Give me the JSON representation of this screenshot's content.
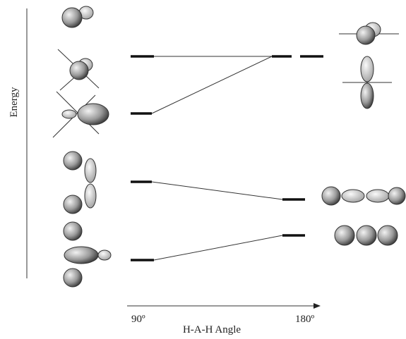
{
  "axis": {
    "y_label": "Energy",
    "x_label": "H-A-H Angle",
    "x_start": "90º",
    "x_end": "180º"
  }
}
